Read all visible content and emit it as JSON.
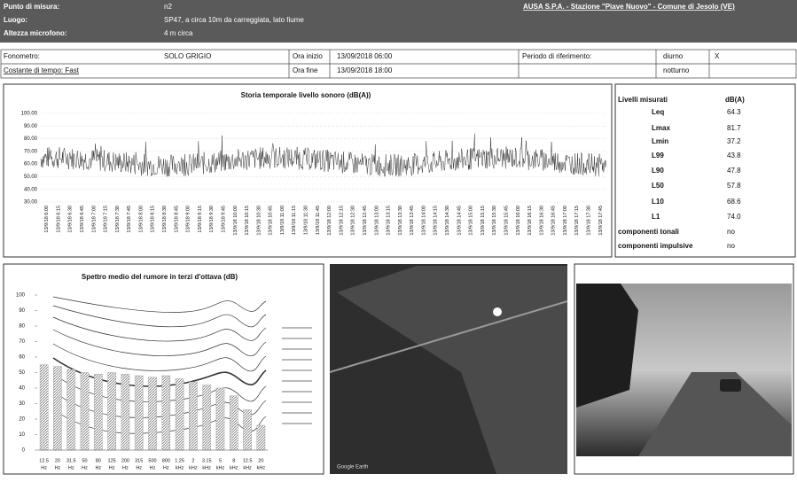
{
  "header": {
    "rows": [
      {
        "label": "Punto di misura:",
        "value": "n2"
      },
      {
        "label": "Luogo:",
        "value": "SP47, a circa 10m da carreggiata, lato fiume"
      },
      {
        "label": "Altezza microfono:",
        "value": "4 m circa"
      }
    ],
    "company": "AUSA S.P.A. - Stazione \"Piave Nuovo\" - Comune di Jesolo (VE)"
  },
  "info": {
    "fonometro_label": "Fonometro:",
    "fonometro": "SOLO GRIGIO",
    "costante": "Costante di tempo: Fast",
    "ora_inizio_label": "Ora inizio",
    "ora_inizio": "13/09/2018 06:00",
    "ora_fine_label": "Ora fine",
    "ora_fine": "13/09/2018 18:00",
    "periodo_label": "Periodo di riferimento:",
    "diurno": "diurno",
    "diurno_mark": "X",
    "notturno": "notturno"
  },
  "time_history": {
    "title": "Storia temporale livello sonoro (dB(A))",
    "ylim": [
      30,
      100
    ],
    "yticks": [
      {
        "value": 100,
        "label": "100.00"
      },
      {
        "value": 90,
        "label": "90.00"
      },
      {
        "value": 80,
        "label": "80.00"
      },
      {
        "value": 70,
        "label": "70.00"
      },
      {
        "value": 60,
        "label": "60.00"
      },
      {
        "value": 50,
        "label": "50.00"
      },
      {
        "value": 40,
        "label": "40.00"
      },
      {
        "value": 30,
        "label": "30.00"
      }
    ],
    "x": [
      "13/9/18 6:00",
      "13/9/18 6:15",
      "13/9/18 6:30",
      "13/9/18 6:45",
      "13/9/18 7:00",
      "13/9/18 7:15",
      "13/9/18 7:30",
      "13/9/18 7:45",
      "13/9/18 8:00",
      "13/9/18 8:15",
      "13/9/18 8:30",
      "13/9/18 8:45",
      "13/9/18 9:00",
      "13/9/18 9:15",
      "13/9/18 9:30",
      "13/9/18 9:45",
      "13/9/18 10:00",
      "13/9/18 10:15",
      "13/9/18 10:30",
      "13/9/18 10:45",
      "13/9/18 11:00",
      "13/9/18 11:15",
      "13/9/18 11:30",
      "13/9/18 11:45",
      "13/9/18 12:00",
      "13/9/18 12:15",
      "13/9/18 12:30",
      "13/9/18 12:45",
      "13/9/18 13:00",
      "13/9/18 13:15",
      "13/9/18 13:30",
      "13/9/18 13:45",
      "13/9/18 14:00",
      "13/9/18 14:15",
      "13/9/18 14:30",
      "13/9/18 14:45",
      "13/9/18 15:00",
      "13/9/18 15:15",
      "13/9/18 15:30",
      "13/9/18 15:45",
      "13/9/18 16:00",
      "13/9/18 16:15",
      "13/9/18 16:30",
      "13/9/18 16:45",
      "13/9/18 17:00",
      "13/9/18 17:15",
      "13/9/18 17:30",
      "13/9/18 17:45"
    ]
  },
  "levels": {
    "title": "Livelli misurati",
    "unit": "dB(A)",
    "rows": [
      [
        "Leq",
        "64.3"
      ],
      [
        "Lmax",
        "81.7"
      ],
      [
        "Lmin",
        "37.2"
      ],
      [
        "L99",
        "43.8"
      ],
      [
        "L90",
        "47.8"
      ],
      [
        "L50",
        "57.8"
      ],
      [
        "L10",
        "68.6"
      ],
      [
        "L1",
        "74.0"
      ]
    ],
    "components": [
      [
        "componenti tonali",
        "no"
      ],
      [
        "componenti impulsive",
        "no"
      ]
    ]
  },
  "spectrum": {
    "type": "bar",
    "title": "Spettro medio del rumore in terzi d'ottava (dB)",
    "categories": [
      "12.5",
      "20",
      "31.5",
      "50",
      "80",
      "125",
      "200",
      "315",
      "500",
      "800",
      "1.25",
      "2",
      "3.15",
      "5",
      "8",
      "12.5",
      "20"
    ],
    "category_units": [
      "Hz",
      "Hz",
      "Hz",
      "Hz",
      "Hz",
      "Hz",
      "Hz",
      "Hz",
      "Hz",
      "Hz",
      "kHz",
      "kHz",
      "kHz",
      "kHz",
      "kHz",
      "kHz",
      "kHz"
    ],
    "values": [
      55,
      54,
      52,
      50,
      49,
      50,
      49,
      48,
      47,
      48,
      46,
      44,
      42,
      40,
      35,
      26,
      16
    ],
    "color": "#9a9a9a",
    "ylim": [
      0,
      100
    ],
    "yticks": [
      0,
      10,
      20,
      30,
      40,
      50,
      60,
      70,
      80,
      90,
      100
    ]
  },
  "photo_caption": "Google Earth"
}
